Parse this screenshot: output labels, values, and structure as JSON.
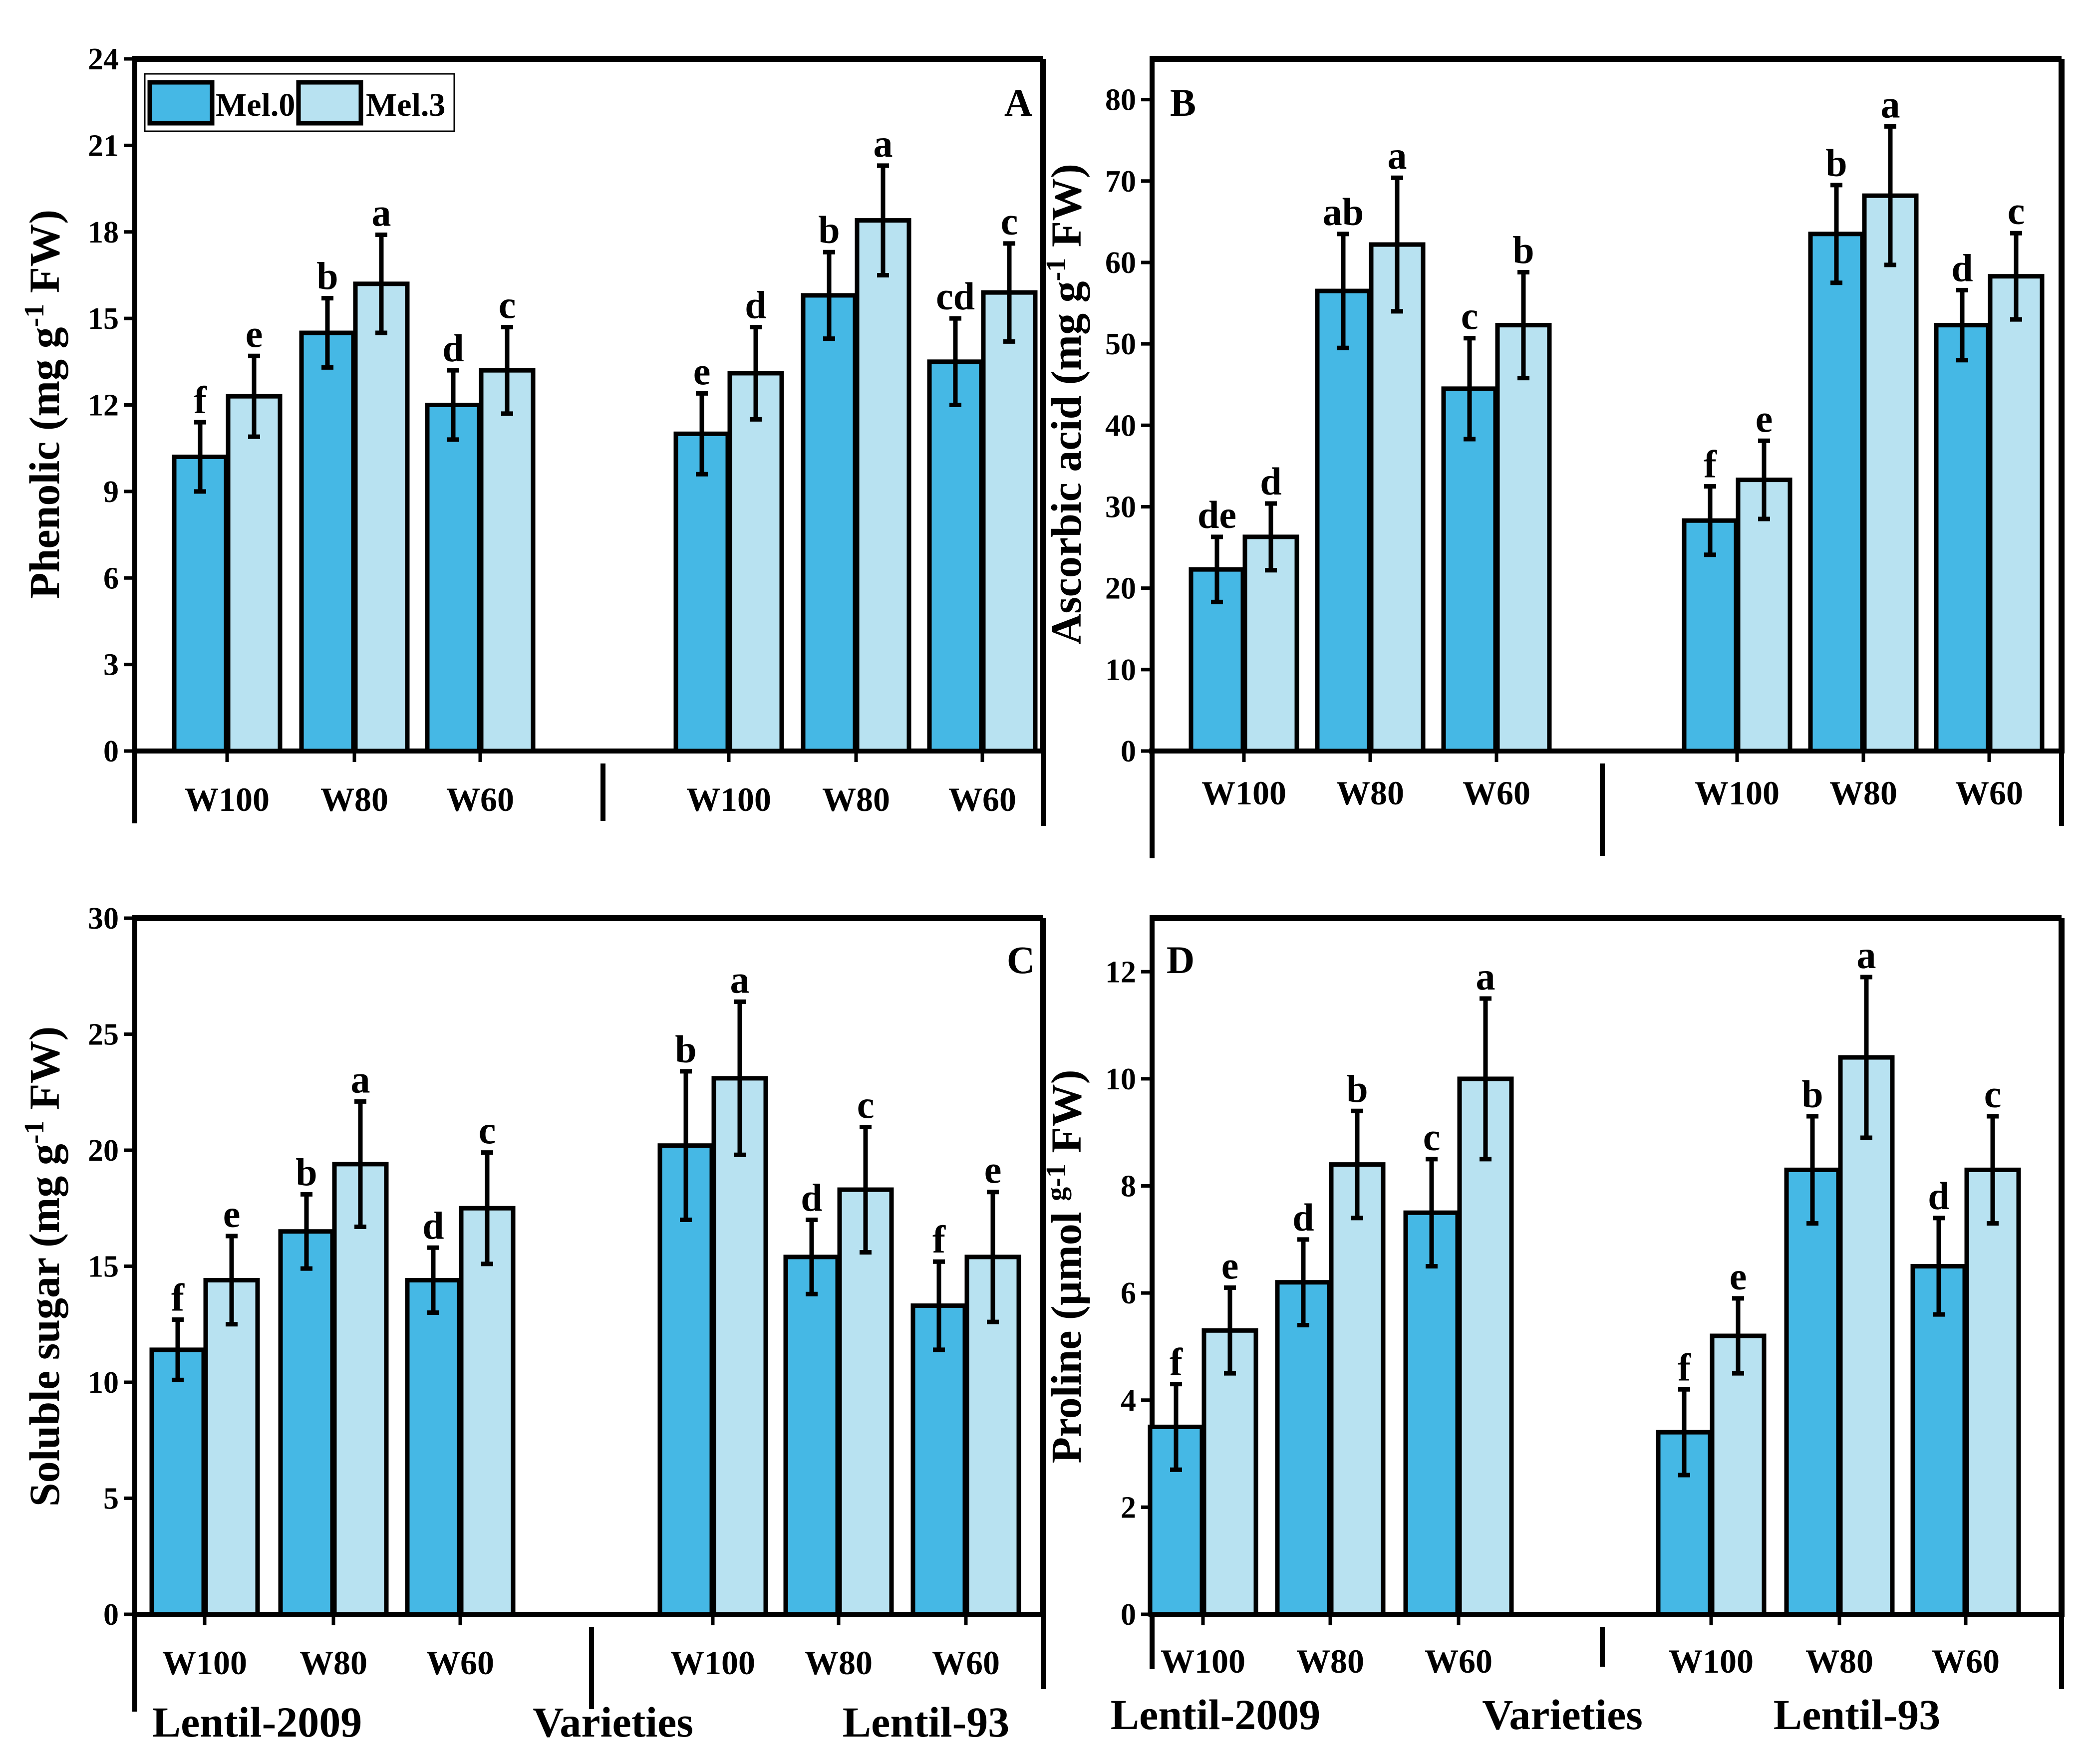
{
  "colors": {
    "mel0": "#45B8E5",
    "mel3": "#B8E2F1",
    "axis": "#000000"
  },
  "legend": {
    "items": [
      {
        "label": "Mel.0",
        "color": "#45B8E5"
      },
      {
        "label": "Mel.3",
        "color": "#B8E2F1"
      }
    ]
  },
  "bottom": {
    "left": {
      "variety1": "Lentil-2009",
      "axis_label": "Varieties",
      "variety2": "Lentil-93"
    },
    "right": {
      "variety1": "Lentil-2009",
      "axis_label": "Varieties",
      "variety2": "Lentil-93"
    }
  },
  "chart_data": [
    {
      "panel": "A",
      "type": "bar",
      "ylabel_main": "Phenolic (mg g",
      "ylabel_sup": "-1",
      "ylabel_tail": " FW)",
      "ylim": [
        0,
        24
      ],
      "yticks": [
        0,
        3,
        6,
        9,
        12,
        15,
        18,
        21,
        24
      ],
      "ytick_labels": [
        "0",
        "3",
        "6",
        "9",
        "12",
        "15",
        "18",
        "21",
        "24"
      ],
      "groups": [
        "W100",
        "W80",
        "W60",
        "W100",
        "W80",
        "W60"
      ],
      "varieties": [
        "Lentil-2009",
        "Lentil-93"
      ],
      "series": [
        {
          "name": "Mel.0",
          "values": [
            10.2,
            14.5,
            12.0,
            11.0,
            15.8,
            13.5
          ],
          "errors": [
            1.2,
            1.2,
            1.2,
            1.4,
            1.5,
            1.5
          ],
          "letters": [
            "f",
            "b",
            "d",
            "e",
            "b",
            "cd"
          ]
        },
        {
          "name": "Mel.3",
          "values": [
            12.3,
            16.2,
            13.2,
            13.1,
            18.4,
            15.9
          ],
          "errors": [
            1.4,
            1.7,
            1.5,
            1.6,
            1.9,
            1.7
          ],
          "letters": [
            "e",
            "a",
            "c",
            "d",
            "a",
            "c"
          ]
        }
      ]
    },
    {
      "panel": "B",
      "type": "bar",
      "ylabel_main": "Ascorbic acid (mg g",
      "ylabel_sup": "-1",
      "ylabel_tail": " FW)",
      "ylim": [
        0,
        85
      ],
      "yticks": [
        0,
        10,
        20,
        30,
        40,
        50,
        60,
        70,
        80
      ],
      "ytick_labels": [
        "0",
        "10",
        "20",
        "30",
        "40",
        "50",
        "60",
        "70",
        "80"
      ],
      "groups": [
        "W100",
        "W80",
        "W60",
        "W100",
        "W80",
        "W60"
      ],
      "varieties": [
        "Lentil-2009",
        "Lentil-93"
      ],
      "series": [
        {
          "name": "Mel.0",
          "values": [
            22.3,
            56.5,
            44.5,
            28.3,
            63.5,
            52.3
          ],
          "errors": [
            4.0,
            7.0,
            6.2,
            4.2,
            6.0,
            4.3
          ],
          "letters": [
            "de",
            "ab",
            "c",
            "f",
            "b",
            "d"
          ]
        },
        {
          "name": "Mel.3",
          "values": [
            26.3,
            62.2,
            52.3,
            33.3,
            68.2,
            58.3
          ],
          "errors": [
            4.1,
            8.2,
            6.5,
            4.8,
            8.5,
            5.3
          ],
          "letters": [
            "d",
            "a",
            "b",
            "e",
            "a",
            "c"
          ]
        }
      ]
    },
    {
      "panel": "C",
      "type": "bar",
      "ylabel_main": "Soluble sugar (mg g",
      "ylabel_sup": "-1",
      "ylabel_tail": " FW)",
      "ylim": [
        0,
        30
      ],
      "yticks": [
        0,
        5,
        10,
        15,
        20,
        25,
        30
      ],
      "ytick_labels": [
        "0",
        "5",
        "10",
        "15",
        "20",
        "25",
        "30"
      ],
      "groups": [
        "W100",
        "W80",
        "W60",
        "W100",
        "W80",
        "W60"
      ],
      "varieties": [
        "Lentil-2009",
        "Lentil-93"
      ],
      "series": [
        {
          "name": "Mel.0",
          "values": [
            11.4,
            16.5,
            14.4,
            20.2,
            15.4,
            13.3
          ],
          "errors": [
            1.3,
            1.6,
            1.4,
            3.2,
            1.6,
            1.9
          ],
          "letters": [
            "f",
            "b",
            "d",
            "b",
            "d",
            "f"
          ]
        },
        {
          "name": "Mel.3",
          "values": [
            14.4,
            19.4,
            17.5,
            23.1,
            18.3,
            15.4
          ],
          "errors": [
            1.9,
            2.7,
            2.4,
            3.3,
            2.7,
            2.8
          ],
          "letters": [
            "e",
            "a",
            "c",
            "a",
            "c",
            "e"
          ]
        }
      ]
    },
    {
      "panel": "D",
      "type": "bar",
      "ylabel_main": "Proline (µmol ",
      "ylabel_sup": "g-1",
      "ylabel_tail": " FW)",
      "ylim": [
        0,
        13
      ],
      "yticks": [
        0,
        2,
        4,
        6,
        8,
        10,
        12
      ],
      "ytick_labels": [
        "0",
        "2",
        "4",
        "6",
        "8",
        "10",
        "12"
      ],
      "groups": [
        "W100",
        "W80",
        "W60",
        "W100",
        "W80",
        "W60"
      ],
      "varieties": [
        "Lentil-2009",
        "Lentil-93"
      ],
      "series": [
        {
          "name": "Mel.0",
          "values": [
            3.5,
            6.2,
            7.5,
            3.4,
            8.3,
            6.5
          ],
          "errors": [
            0.8,
            0.8,
            1.0,
            0.8,
            1.0,
            0.9
          ],
          "letters": [
            "f",
            "d",
            "c",
            "f",
            "b",
            "d"
          ]
        },
        {
          "name": "Mel.3",
          "values": [
            5.3,
            8.4,
            10.0,
            5.2,
            10.4,
            8.3
          ],
          "errors": [
            0.8,
            1.0,
            1.5,
            0.7,
            1.5,
            1.0
          ],
          "letters": [
            "e",
            "b",
            "a",
            "e",
            "a",
            "c"
          ]
        }
      ]
    }
  ]
}
